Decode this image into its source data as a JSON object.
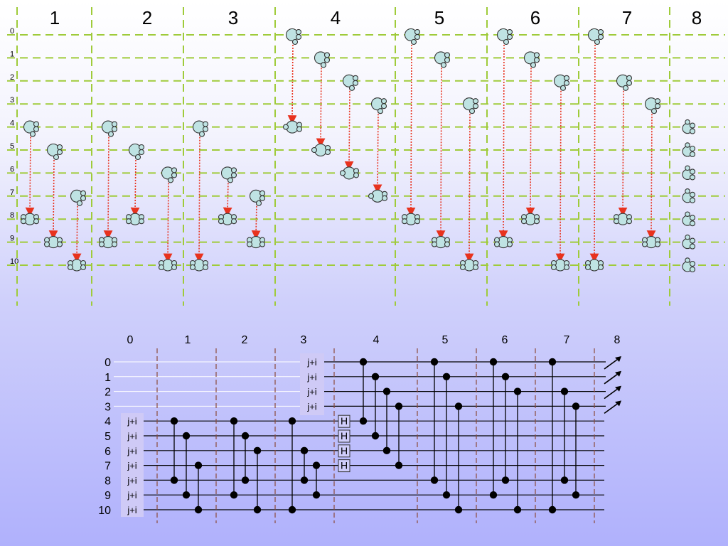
{
  "top": {
    "stage_labels": [
      "1",
      "2",
      "3",
      "4",
      "5",
      "6",
      "7",
      "8"
    ],
    "row_labels": [
      "0",
      "1",
      "2",
      "3",
      "4",
      "5",
      "6",
      "7",
      "8",
      "9",
      "10"
    ],
    "colors": {
      "grid_line": "#9fcb3a",
      "molecule_fill": "#bfe3e3",
      "molecule_stroke": "#333333",
      "arrow": "#e8321e"
    },
    "moves": [
      {
        "stage": 1,
        "from": 4,
        "to": 8
      },
      {
        "stage": 1,
        "from": 5,
        "to": 9
      },
      {
        "stage": 1,
        "from": 7,
        "to": 10
      },
      {
        "stage": 2,
        "from": 4,
        "to": 9
      },
      {
        "stage": 2,
        "from": 5,
        "to": 8
      },
      {
        "stage": 2,
        "from": 6,
        "to": 10
      },
      {
        "stage": 3,
        "from": 4,
        "to": 10
      },
      {
        "stage": 3,
        "from": 6,
        "to": 8
      },
      {
        "stage": 3,
        "from": 7,
        "to": 9
      },
      {
        "stage": 4,
        "from": 0,
        "to": 4
      },
      {
        "stage": 4,
        "from": 1,
        "to": 5
      },
      {
        "stage": 4,
        "from": 2,
        "to": 6
      },
      {
        "stage": 4,
        "from": 3,
        "to": 7
      },
      {
        "stage": 5,
        "from": 0,
        "to": 8
      },
      {
        "stage": 5,
        "from": 1,
        "to": 9
      },
      {
        "stage": 5,
        "from": 3,
        "to": 10
      },
      {
        "stage": 6,
        "from": 0,
        "to": 9
      },
      {
        "stage": 6,
        "from": 1,
        "to": 8
      },
      {
        "stage": 6,
        "from": 2,
        "to": 10
      },
      {
        "stage": 7,
        "from": 0,
        "to": 10
      },
      {
        "stage": 7,
        "from": 2,
        "to": 8
      },
      {
        "stage": 7,
        "from": 3,
        "to": 9
      }
    ],
    "final_rows": [
      4,
      5,
      6,
      7,
      8,
      9,
      10
    ]
  },
  "circuit": {
    "column_labels": [
      "0",
      "1",
      "2",
      "3",
      "4",
      "5",
      "6",
      "7",
      "8"
    ],
    "row_labels": [
      "0",
      "1",
      "2",
      "3",
      "4",
      "5",
      "6",
      "7",
      "8",
      "9",
      "10"
    ],
    "box_label": "j+i",
    "hadamard_label": "H",
    "colors": {
      "box_fill": "#cfcaf6",
      "wire": "#000000",
      "divider": "#8b4a3a"
    },
    "input_boxes": {
      "column3_rows": [
        0,
        1,
        2,
        3
      ],
      "column0_rows": [
        4,
        5,
        6,
        7,
        8,
        9,
        10
      ]
    },
    "hadamard_rows": [
      4,
      5,
      6,
      7
    ],
    "measured_rows": [
      0,
      1,
      2,
      3
    ],
    "gates": [
      {
        "column": 1,
        "control": 4,
        "target": 8
      },
      {
        "column": 1,
        "control": 5,
        "target": 9
      },
      {
        "column": 1,
        "control": 7,
        "target": 10
      },
      {
        "column": 2,
        "control": 4,
        "target": 9
      },
      {
        "column": 2,
        "control": 5,
        "target": 8
      },
      {
        "column": 2,
        "control": 6,
        "target": 10
      },
      {
        "column": 3,
        "control": 4,
        "target": 10
      },
      {
        "column": 3,
        "control": 6,
        "target": 8
      },
      {
        "column": 3,
        "control": 7,
        "target": 9
      },
      {
        "column": 4,
        "control": 0,
        "target": 4
      },
      {
        "column": 4,
        "control": 1,
        "target": 5
      },
      {
        "column": 4,
        "control": 2,
        "target": 6
      },
      {
        "column": 4,
        "control": 3,
        "target": 7
      },
      {
        "column": 5,
        "control": 0,
        "target": 8
      },
      {
        "column": 5,
        "control": 1,
        "target": 9
      },
      {
        "column": 5,
        "control": 3,
        "target": 10
      },
      {
        "column": 6,
        "control": 0,
        "target": 9
      },
      {
        "column": 6,
        "control": 1,
        "target": 8
      },
      {
        "column": 6,
        "control": 2,
        "target": 10
      },
      {
        "column": 7,
        "control": 0,
        "target": 10
      },
      {
        "column": 7,
        "control": 2,
        "target": 8
      },
      {
        "column": 7,
        "control": 3,
        "target": 9
      }
    ]
  }
}
